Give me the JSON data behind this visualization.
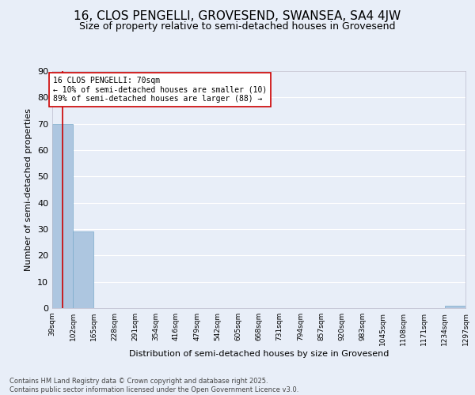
{
  "title1": "16, CLOS PENGELLI, GROVESEND, SWANSEA, SA4 4JW",
  "title2": "Size of property relative to semi-detached houses in Grovesend",
  "xlabel": "Distribution of semi-detached houses by size in Grovesend",
  "ylabel": "Number of semi-detached properties",
  "bin_edges": [
    39,
    102,
    165,
    228,
    291,
    354,
    416,
    479,
    542,
    605,
    668,
    731,
    794,
    857,
    920,
    983,
    1045,
    1108,
    1171,
    1234,
    1297
  ],
  "bin_labels": [
    "39sqm",
    "102sqm",
    "165sqm",
    "228sqm",
    "291sqm",
    "354sqm",
    "416sqm",
    "479sqm",
    "542sqm",
    "605sqm",
    "668sqm",
    "731sqm",
    "794sqm",
    "857sqm",
    "920sqm",
    "983sqm",
    "1045sqm",
    "1108sqm",
    "1171sqm",
    "1234sqm",
    "1297sqm"
  ],
  "counts": [
    70,
    29,
    0,
    0,
    0,
    0,
    0,
    0,
    0,
    0,
    0,
    0,
    0,
    0,
    0,
    0,
    0,
    0,
    0,
    1
  ],
  "bar_color": "#adc6e0",
  "bar_edge_color": "#7aaacb",
  "property_size": 70,
  "property_line_color": "#cc0000",
  "ylim": [
    0,
    90
  ],
  "yticks": [
    0,
    10,
    20,
    30,
    40,
    50,
    60,
    70,
    80,
    90
  ],
  "annotation_text": "16 CLOS PENGELLI: 70sqm\n← 10% of semi-detached houses are smaller (10)\n89% of semi-detached houses are larger (88) →",
  "annotation_box_color": "#ffffff",
  "annotation_border_color": "#cc0000",
  "footer_text": "Contains HM Land Registry data © Crown copyright and database right 2025.\nContains public sector information licensed under the Open Government Licence v3.0.",
  "background_color": "#e8eef8",
  "grid_color": "#ffffff",
  "title1_fontsize": 11,
  "title2_fontsize": 9,
  "annotation_fontsize": 7,
  "ylabel_fontsize": 8,
  "xlabel_fontsize": 8,
  "ytick_fontsize": 8,
  "xtick_fontsize": 6.5,
  "footer_fontsize": 6
}
